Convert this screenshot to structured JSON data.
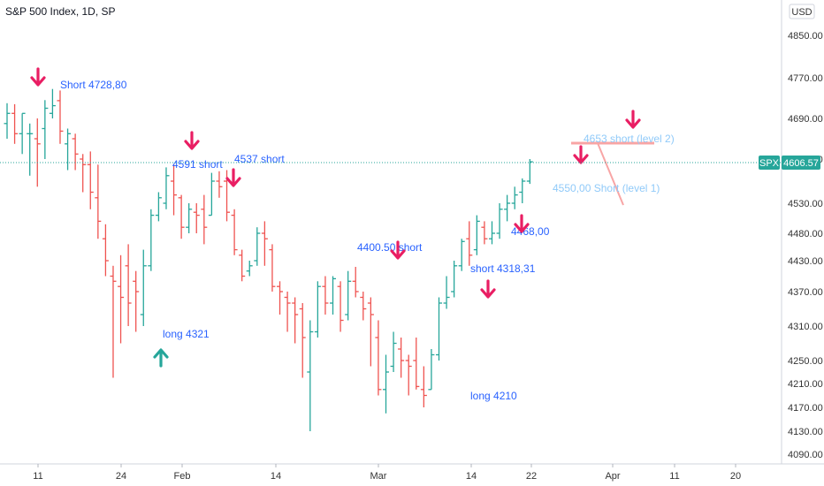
{
  "header": {
    "title": "S&P 500 Index, 1D, SP",
    "currency": "USD"
  },
  "price_tag": {
    "symbol": "SPX",
    "value": "4606.57"
  },
  "colors": {
    "up": "#26a69a",
    "down": "#ef5350",
    "annotation": "#2962ff",
    "arrow_down": "#e91e63",
    "arrow_up": "#26a69a",
    "level2": "#f8a5a5",
    "level1_text": "#90caf9"
  },
  "annotations": [
    {
      "text": "Short 4728,80",
      "color": "#2962ff"
    },
    {
      "text": "4591 short",
      "color": "#2962ff"
    },
    {
      "text": "4537 short",
      "color": "#2962ff"
    },
    {
      "text": "long  4321",
      "color": "#2962ff"
    },
    {
      "text": "4400.50 short",
      "color": "#2962ff"
    },
    {
      "text": "short  4318,31",
      "color": "#2962ff"
    },
    {
      "text": "4468,00",
      "color": "#2962ff"
    },
    {
      "text": "long  4210",
      "color": "#2962ff"
    },
    {
      "text": "4653   short (level 2)",
      "color": "#90caf9"
    },
    {
      "text": "4550,00  Short (level 1)",
      "color": "#90caf9"
    }
  ],
  "chart_data": {
    "type": "ohlc",
    "title": "S&P 500 Index, 1D, SP",
    "y_ticks": [
      4850,
      4770,
      4690,
      4610,
      4530,
      4480,
      4430,
      4370,
      4310,
      4250,
      4210,
      4170,
      4130,
      4090
    ],
    "y_tick_labels": [
      "4850.00",
      "4770.00",
      "4690.00",
      "4610.00",
      "4530.00",
      "4480.00",
      "4430.00",
      "4370.00",
      "4310.00",
      "4250.00",
      "4210.00",
      "4170.00",
      "4130.00",
      "4090.00"
    ],
    "x_tick_labels": [
      "11",
      "24",
      "Feb",
      "14",
      "Mar",
      "14",
      "22",
      "Apr",
      "11",
      "20"
    ],
    "current_price": 4606.57,
    "bars": [
      {
        "o": 4680,
        "h": 4720,
        "l": 4650,
        "c": 4700
      },
      {
        "o": 4700,
        "h": 4718,
        "l": 4640,
        "c": 4660
      },
      {
        "o": 4660,
        "h": 4700,
        "l": 4620,
        "c": 4700
      },
      {
        "o": 4660,
        "h": 4680,
        "l": 4580,
        "c": 4660
      },
      {
        "o": 4650,
        "h": 4690,
        "l": 4560,
        "c": 4640
      },
      {
        "o": 4670,
        "h": 4726,
        "l": 4610,
        "c": 4710
      },
      {
        "o": 4700,
        "h": 4748,
        "l": 4690,
        "c": 4715
      },
      {
        "o": 4725,
        "h": 4745,
        "l": 4640,
        "c": 4665
      },
      {
        "o": 4640,
        "h": 4670,
        "l": 4590,
        "c": 4660
      },
      {
        "o": 4650,
        "h": 4660,
        "l": 4590,
        "c": 4620
      },
      {
        "o": 4610,
        "h": 4620,
        "l": 4550,
        "c": 4600
      },
      {
        "o": 4600,
        "h": 4625,
        "l": 4520,
        "c": 4550
      },
      {
        "o": 4540,
        "h": 4600,
        "l": 4470,
        "c": 4500
      },
      {
        "o": 4470,
        "h": 4495,
        "l": 4400,
        "c": 4430
      },
      {
        "o": 4400,
        "h": 4420,
        "l": 4220,
        "c": 4390
      },
      {
        "o": 4380,
        "h": 4440,
        "l": 4280,
        "c": 4360
      },
      {
        "o": 4420,
        "h": 4460,
        "l": 4310,
        "c": 4350
      },
      {
        "o": 4390,
        "h": 4410,
        "l": 4300,
        "c": 4370
      },
      {
        "o": 4330,
        "h": 4450,
        "l": 4310,
        "c": 4420
      },
      {
        "o": 4420,
        "h": 4520,
        "l": 4410,
        "c": 4510
      },
      {
        "o": 4510,
        "h": 4550,
        "l": 4500,
        "c": 4540
      },
      {
        "o": 4530,
        "h": 4595,
        "l": 4520,
        "c": 4580
      },
      {
        "o": 4570,
        "h": 4600,
        "l": 4510,
        "c": 4545
      },
      {
        "o": 4540,
        "h": 4545,
        "l": 4470,
        "c": 4490
      },
      {
        "o": 4490,
        "h": 4530,
        "l": 4480,
        "c": 4520
      },
      {
        "o": 4515,
        "h": 4530,
        "l": 4480,
        "c": 4510
      },
      {
        "o": 4520,
        "h": 4545,
        "l": 4460,
        "c": 4490
      },
      {
        "o": 4510,
        "h": 4585,
        "l": 4510,
        "c": 4570
      },
      {
        "o": 4570,
        "h": 4588,
        "l": 4540,
        "c": 4560
      },
      {
        "o": 4570,
        "h": 4590,
        "l": 4500,
        "c": 4515
      },
      {
        "o": 4510,
        "h": 4520,
        "l": 4440,
        "c": 4450
      },
      {
        "o": 4440,
        "h": 4450,
        "l": 4390,
        "c": 4400
      },
      {
        "o": 4410,
        "h": 4430,
        "l": 4400,
        "c": 4420
      },
      {
        "o": 4430,
        "h": 4490,
        "l": 4420,
        "c": 4480
      },
      {
        "o": 4480,
        "h": 4500,
        "l": 4420,
        "c": 4470
      },
      {
        "o": 4450,
        "h": 4460,
        "l": 4370,
        "c": 4380
      },
      {
        "o": 4380,
        "h": 4390,
        "l": 4330,
        "c": 4370
      },
      {
        "o": 4360,
        "h": 4370,
        "l": 4300,
        "c": 4350
      },
      {
        "o": 4350,
        "h": 4360,
        "l": 4280,
        "c": 4330
      },
      {
        "o": 4340,
        "h": 4350,
        "l": 4220,
        "c": 4290
      },
      {
        "o": 4230,
        "h": 4320,
        "l": 4130,
        "c": 4300
      },
      {
        "o": 4300,
        "h": 4390,
        "l": 4290,
        "c": 4380
      },
      {
        "o": 4380,
        "h": 4400,
        "l": 4330,
        "c": 4350
      },
      {
        "o": 4350,
        "h": 4400,
        "l": 4330,
        "c": 4395
      },
      {
        "o": 4380,
        "h": 4390,
        "l": 4300,
        "c": 4320
      },
      {
        "o": 4330,
        "h": 4410,
        "l": 4320,
        "c": 4390
      },
      {
        "o": 4390,
        "h": 4418,
        "l": 4360,
        "c": 4370
      },
      {
        "o": 4360,
        "h": 4370,
        "l": 4320,
        "c": 4340
      },
      {
        "o": 4350,
        "h": 4360,
        "l": 4240,
        "c": 4330
      },
      {
        "o": 4290,
        "h": 4320,
        "l": 4190,
        "c": 4200
      },
      {
        "o": 4200,
        "h": 4260,
        "l": 4160,
        "c": 4230
      },
      {
        "o": 4240,
        "h": 4300,
        "l": 4230,
        "c": 4280
      },
      {
        "o": 4270,
        "h": 4290,
        "l": 4220,
        "c": 4250
      },
      {
        "o": 4250,
        "h": 4260,
        "l": 4190,
        "c": 4240
      },
      {
        "o": 4250,
        "h": 4290,
        "l": 4200,
        "c": 4205
      },
      {
        "o": 4200,
        "h": 4240,
        "l": 4170,
        "c": 4190
      },
      {
        "o": 4200,
        "h": 4270,
        "l": 4200,
        "c": 4260
      },
      {
        "o": 4260,
        "h": 4360,
        "l": 4250,
        "c": 4350
      },
      {
        "o": 4350,
        "h": 4400,
        "l": 4340,
        "c": 4360
      },
      {
        "o": 4370,
        "h": 4430,
        "l": 4360,
        "c": 4420
      },
      {
        "o": 4420,
        "h": 4470,
        "l": 4410,
        "c": 4465
      },
      {
        "o": 4470,
        "h": 4500,
        "l": 4420,
        "c": 4440
      },
      {
        "o": 4450,
        "h": 4510,
        "l": 4440,
        "c": 4500
      },
      {
        "o": 4490,
        "h": 4500,
        "l": 4460,
        "c": 4470
      },
      {
        "o": 4470,
        "h": 4500,
        "l": 4460,
        "c": 4480
      },
      {
        "o": 4480,
        "h": 4530,
        "l": 4470,
        "c": 4520
      },
      {
        "o": 4520,
        "h": 4545,
        "l": 4500,
        "c": 4530
      },
      {
        "o": 4530,
        "h": 4560,
        "l": 4520,
        "c": 4545
      },
      {
        "o": 4550,
        "h": 4575,
        "l": 4530,
        "c": 4570
      },
      {
        "o": 4570,
        "h": 4610,
        "l": 4565,
        "c": 4605
      }
    ]
  }
}
